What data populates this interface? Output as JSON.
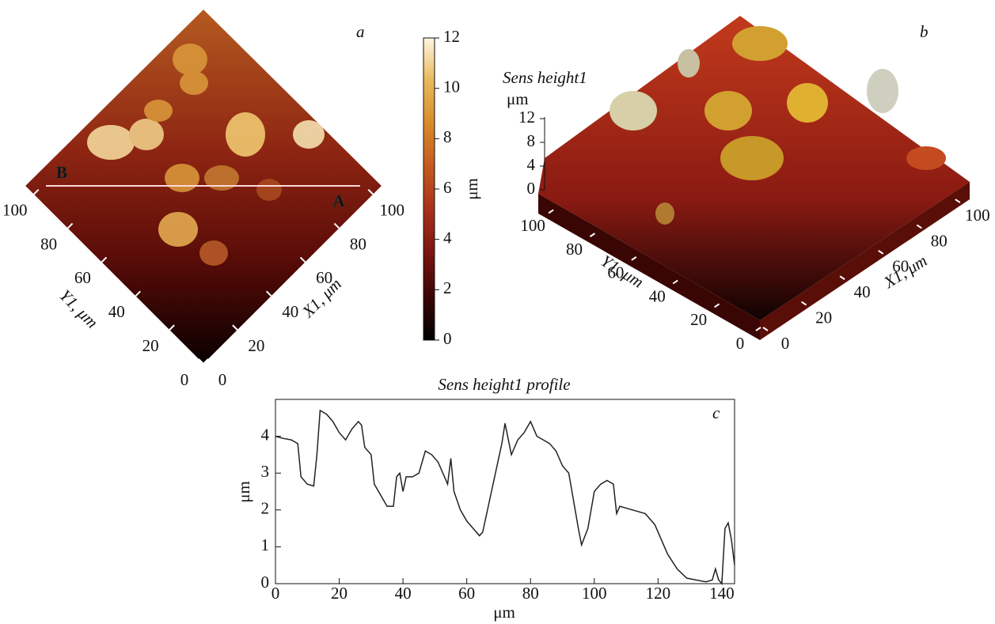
{
  "chart_data": [
    {
      "type": "map",
      "label": "a",
      "start_marker": "B",
      "end_marker": "A",
      "x_label": "X1, μm",
      "y_label": "Y1, μm",
      "xlim": [
        0,
        105
      ],
      "xticks": [
        0,
        20,
        40,
        60,
        80,
        100
      ],
      "ylim": [
        0,
        105
      ],
      "yticks": [
        0,
        20,
        40,
        60,
        80,
        100
      ],
      "colorbar": {
        "label": "μm",
        "lim": [
          0,
          12
        ],
        "ticks": [
          0,
          2,
          4,
          6,
          8,
          10,
          12
        ],
        "colors": [
          "#000000",
          "#3a0504",
          "#7a1410",
          "#a8301c",
          "#c4581e",
          "#d88a28",
          "#e8b85a",
          "#fff6e0"
        ]
      }
    },
    {
      "type": "surface",
      "label": "b",
      "z_title": "Sens height1",
      "z_unit": "μm",
      "x_label": "X1, μm",
      "y_label": "Y1, μm",
      "zlim": [
        0,
        12
      ],
      "zticks": [
        0,
        4,
        8,
        12
      ],
      "xlim": [
        0,
        105
      ],
      "xticks": [
        0,
        20,
        40,
        60,
        80,
        100
      ],
      "ylim": [
        0,
        105
      ],
      "yticks": [
        0,
        20,
        40,
        60,
        80,
        100
      ]
    },
    {
      "type": "line",
      "title": "Sens height1 profile",
      "label": "c",
      "x_label": "μm",
      "y_label": "μm",
      "color": "#222222",
      "xlim": [
        0,
        144
      ],
      "xticks": [
        0,
        20,
        40,
        60,
        80,
        100,
        120,
        140
      ],
      "ylim": [
        0,
        5
      ],
      "yticks": [
        0,
        1,
        2,
        3,
        4
      ],
      "x": [
        0,
        2,
        5,
        7,
        8,
        10,
        12,
        13,
        14,
        16,
        18,
        20,
        22,
        24,
        26,
        27,
        28,
        30,
        31,
        33,
        35,
        37,
        38,
        39,
        40,
        41,
        43,
        45,
        47,
        49,
        51,
        53,
        54,
        55,
        56,
        58,
        60,
        62,
        64,
        65,
        67,
        69,
        71,
        72,
        74,
        76,
        78,
        80,
        82,
        84,
        86,
        88,
        90,
        92,
        93,
        95,
        96,
        98,
        100,
        102,
        104,
        106,
        107,
        108,
        112,
        116,
        119,
        121,
        123,
        126,
        129,
        132,
        135,
        137,
        138,
        139,
        140,
        141,
        142,
        143,
        144
      ],
      "values": [
        4.0,
        3.95,
        3.9,
        3.8,
        2.9,
        2.7,
        2.65,
        3.5,
        4.7,
        4.6,
        4.4,
        4.1,
        3.9,
        4.2,
        4.4,
        4.3,
        3.7,
        3.5,
        2.7,
        2.4,
        2.1,
        2.1,
        2.9,
        3.0,
        2.5,
        2.9,
        2.9,
        3.0,
        3.6,
        3.5,
        3.3,
        2.9,
        2.7,
        3.4,
        2.5,
        2.0,
        1.7,
        1.5,
        1.3,
        1.4,
        2.2,
        3.0,
        3.8,
        4.35,
        3.5,
        3.9,
        4.1,
        4.4,
        4.0,
        3.9,
        3.8,
        3.6,
        3.2,
        3.0,
        2.5,
        1.5,
        1.05,
        1.5,
        2.5,
        2.7,
        2.8,
        2.7,
        1.9,
        2.1,
        2.0,
        1.9,
        1.6,
        1.2,
        0.8,
        0.4,
        0.15,
        0.1,
        0.05,
        0.1,
        0.4,
        0.1,
        0.0,
        1.5,
        1.65,
        1.2,
        0.5
      ]
    }
  ]
}
